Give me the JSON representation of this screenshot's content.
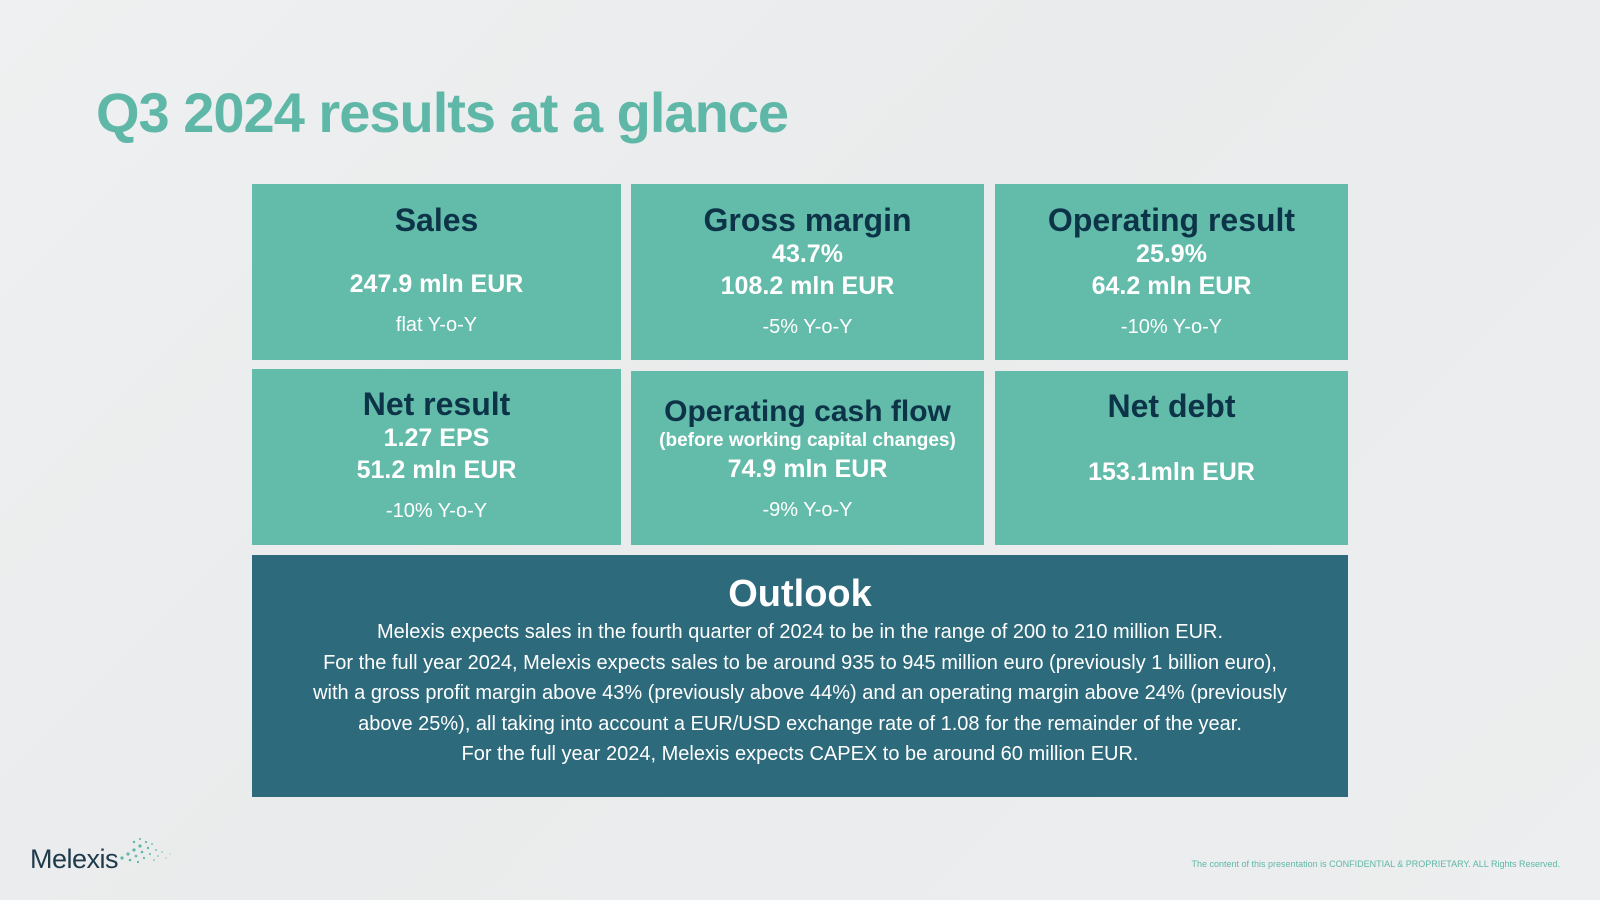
{
  "title": "Q3 2024 results at a glance",
  "tiles": {
    "sales": {
      "title": "Sales",
      "amount": "247.9 mln EUR",
      "yoy": "flat  Y-o-Y"
    },
    "gross_margin": {
      "title": "Gross margin",
      "percent": "43.7%",
      "amount": "108.2 mln EUR",
      "yoy": "-5% Y-o-Y"
    },
    "operating_result": {
      "title": "Operating result",
      "percent": "25.9%",
      "amount": "64.2 mln EUR",
      "yoy": "-10% Y-o-Y"
    },
    "net_result": {
      "title": "Net result",
      "eps": "1.27 EPS",
      "amount": "51.2 mln EUR",
      "yoy": "-10% Y-o-Y"
    },
    "operating_cash_flow": {
      "title": "Operating cash flow",
      "subtitle": "(before working capital changes)",
      "amount": "74.9 mln EUR",
      "yoy": "-9% Y-o-Y"
    },
    "net_debt": {
      "title": "Net debt",
      "amount": "153.1mln EUR"
    }
  },
  "outlook": {
    "title": "Outlook",
    "lines": [
      "Melexis expects sales in the fourth quarter of 2024 to be in the range of 200 to 210 million EUR.",
      "For the full year 2024, Melexis expects sales to be around 935 to 945 million euro (previously 1 billion euro),",
      "with a gross profit margin above 43% (previously above 44%) and an operating margin above 24% (previously",
      "above 25%), all taking into account a EUR/USD exchange rate of 1.08 for the remainder of the year.",
      "For the full year 2024, Melexis expects CAPEX to be around 60 million EUR."
    ]
  },
  "logo": {
    "text": "Melexis"
  },
  "footer": {
    "confidential": "The content of this presentation is CONFIDENTIAL & PROPRIETARY. ALL Rights Reserved."
  },
  "colors": {
    "title": "#5fb8a7",
    "tile_bg": "#63bbaa",
    "tile_heading": "#0c3347",
    "outlook_bg": "#2d6a7b"
  }
}
